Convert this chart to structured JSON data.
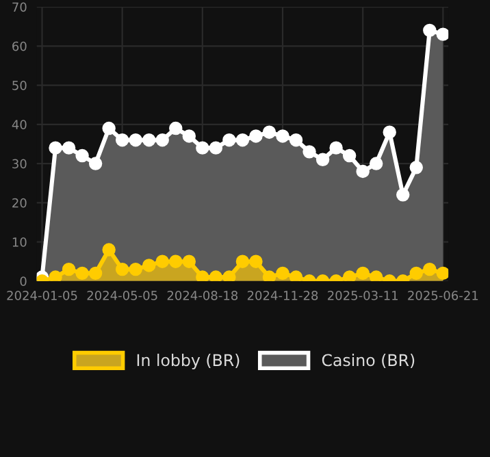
{
  "chart_data": {
    "type": "area",
    "categories": [
      "2024-01-05",
      null,
      null,
      null,
      null,
      null,
      "2024-05-05",
      null,
      null,
      null,
      null,
      null,
      "2024-08-18",
      null,
      null,
      null,
      null,
      null,
      "2024-11-28",
      null,
      null,
      null,
      null,
      null,
      "2025-03-11",
      null,
      null,
      null,
      null,
      null,
      "2025-06-21"
    ],
    "series": [
      {
        "name": "In lobby (BR)",
        "color": "#ffcc00",
        "values": [
          0,
          1,
          3,
          2,
          2,
          8,
          3,
          3,
          4,
          5,
          5,
          5,
          1,
          1,
          1,
          5,
          5,
          1,
          2,
          1,
          0,
          0,
          0,
          1,
          2,
          1,
          0,
          0,
          2,
          3,
          2
        ]
      },
      {
        "name": "Casino (BR)",
        "color": "#ffffff",
        "values": [
          1,
          34,
          34,
          32,
          30,
          39,
          36,
          36,
          36,
          36,
          39,
          37,
          34,
          34,
          36,
          36,
          37,
          38,
          37,
          36,
          33,
          31,
          34,
          32,
          28,
          30,
          38,
          22,
          29,
          64,
          63
        ]
      }
    ],
    "ylim": [
      0,
      70
    ],
    "yticks": [
      0,
      10,
      20,
      30,
      40,
      50,
      60,
      70
    ],
    "grid": true,
    "legend": "bottom",
    "marker": "circle",
    "line_style": "solid"
  }
}
